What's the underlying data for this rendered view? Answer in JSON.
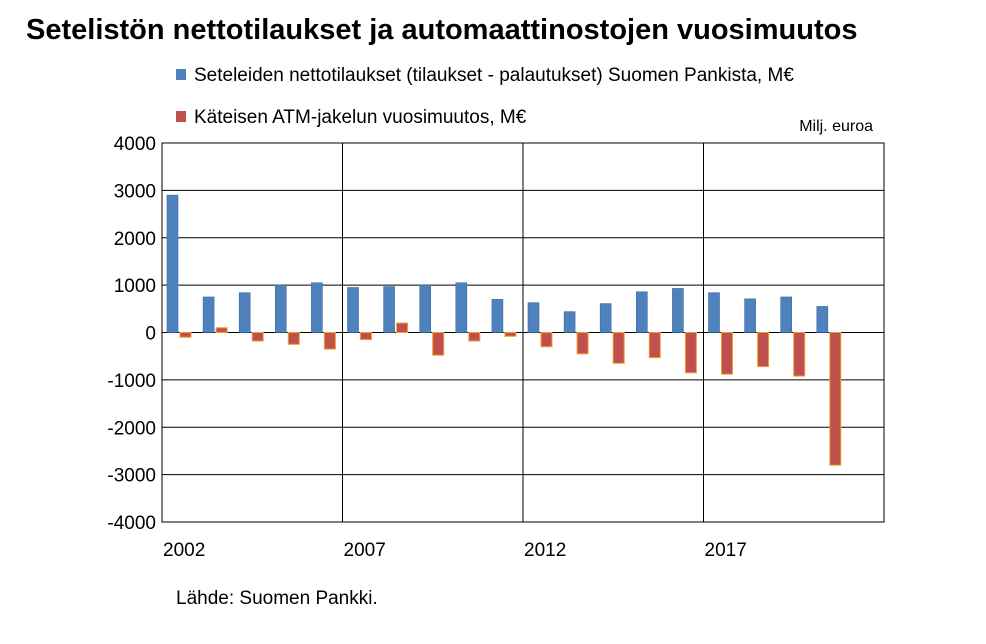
{
  "title": "Setelistön nettotilaukset ja automaattinostojen vuosimuutos",
  "unit_label": "Milj. euroa",
  "source": "Lähde: Suomen Pankki.",
  "colors": {
    "series1": "#4f81bd",
    "series2": "#c0504d",
    "series2_border": "#f0a030",
    "grid": "#000000"
  },
  "chart_data": {
    "type": "bar",
    "x": [
      2002,
      2003,
      2004,
      2005,
      2006,
      2007,
      2008,
      2009,
      2010,
      2011,
      2012,
      2013,
      2014,
      2015,
      2016,
      2017,
      2018,
      2019,
      2020
    ],
    "x_tick_labels": [
      "2002",
      "2007",
      "2012",
      "2017"
    ],
    "ylim": [
      -4000,
      4000
    ],
    "y_ticks": [
      4000,
      3000,
      2000,
      1000,
      0,
      -1000,
      -2000,
      -3000,
      -4000
    ],
    "grid": true,
    "legend_position": "top",
    "series": [
      {
        "name": "Seteleiden nettotilaukset (tilaukset - palautukset)  Suomen Pankista, M€",
        "values": [
          2900,
          750,
          840,
          1000,
          1050,
          950,
          970,
          1000,
          1050,
          700,
          630,
          440,
          610,
          860,
          930,
          840,
          710,
          750,
          550
        ]
      },
      {
        "name": "Käteisen ATM-jakelun vuosimuutos, M€",
        "values": [
          -100,
          100,
          -180,
          -250,
          -350,
          -150,
          200,
          -480,
          -180,
          -80,
          -300,
          -450,
          -650,
          -530,
          -850,
          -880,
          -720,
          -920,
          -2800
        ]
      }
    ]
  }
}
